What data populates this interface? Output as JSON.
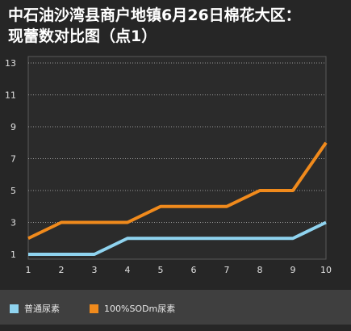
{
  "title": "中石油沙湾县商户地镇6月26日棉花大区：\n现蕾数对比图（点1）",
  "colors": {
    "background": "#262626",
    "plot_background": "#2b2b2b",
    "grid": "#9a9a9a",
    "series_1": "#8fd3ef",
    "series_2": "#f08a1c",
    "legend_background": "#3f3f3f"
  },
  "chart_data": {
    "type": "line",
    "title": "中石油沙湾县商户地镇6月26日棉花大区：现蕾数对比图（点1）",
    "x": [
      1,
      2,
      3,
      4,
      5,
      6,
      7,
      8,
      9,
      10
    ],
    "x_tick_labels": [
      "1",
      "2",
      "3",
      "4",
      "5",
      "6",
      "7",
      "8",
      "9",
      "10"
    ],
    "y_tick_labels": [
      "1",
      "3",
      "5",
      "7",
      "9",
      "11",
      "13"
    ],
    "y_ticks": [
      1,
      3,
      5,
      7,
      9,
      11,
      13
    ],
    "xlim": [
      1,
      10
    ],
    "ylim": [
      1,
      13
    ],
    "grid": true,
    "legend_position": "bottom-left",
    "series": [
      {
        "name": "普通尿素",
        "values": [
          1,
          1,
          1,
          2,
          2,
          2,
          2,
          2,
          2,
          3
        ]
      },
      {
        "name": "100%SODm尿素",
        "values": [
          2,
          3,
          3,
          3,
          4,
          4,
          4,
          5,
          5,
          8
        ]
      }
    ]
  }
}
